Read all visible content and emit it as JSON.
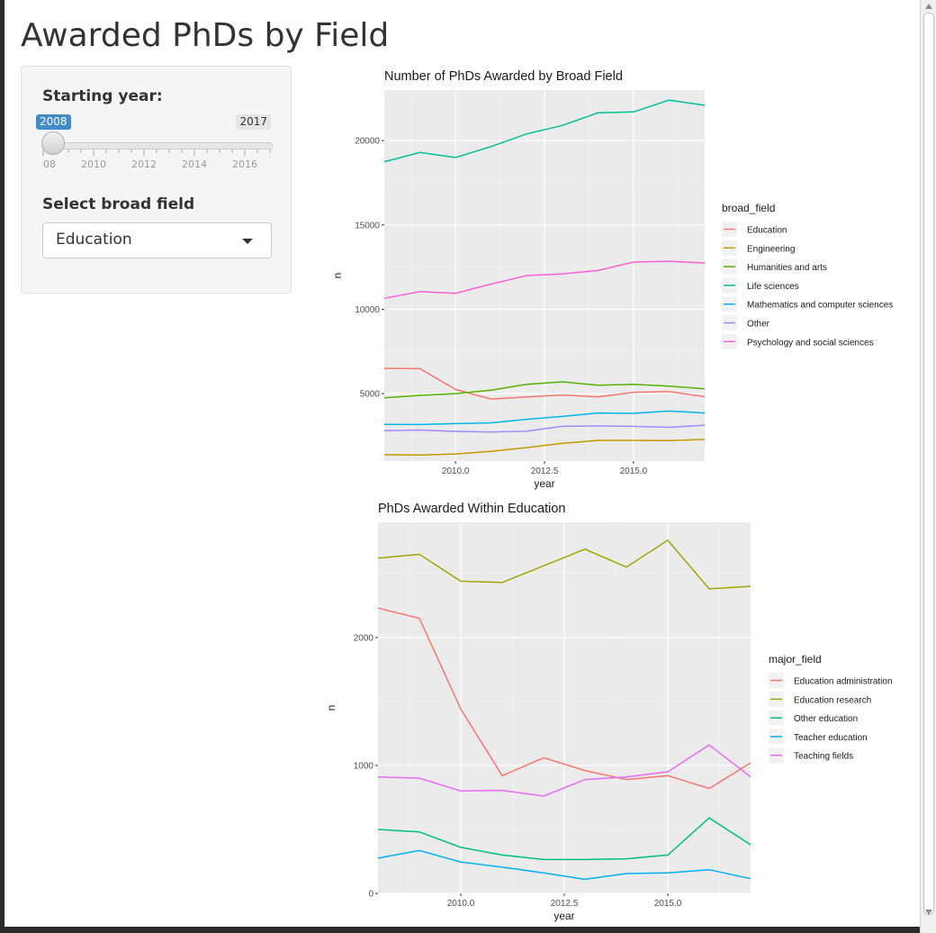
{
  "page": {
    "title": "Awarded PhDs by Field"
  },
  "controls": {
    "slider": {
      "label": "Starting year:",
      "min_label": "2008",
      "max_label": "2017",
      "tick_labels": [
        "2008",
        "2010",
        "2012",
        "2014",
        "2016"
      ]
    },
    "select": {
      "label": "Select broad field",
      "value": "Education"
    }
  },
  "icons": {
    "dropdown": "chevron-down-icon"
  },
  "chart_data": [
    {
      "type": "line",
      "title": "Number of PhDs Awarded by Broad Field",
      "xlabel": "year",
      "ylabel": "n",
      "xlim": [
        2008,
        2017
      ],
      "ylim": [
        1000,
        23000
      ],
      "x_ticks": [
        2010,
        2012.5,
        2015
      ],
      "x_tick_labels": [
        "2010.0",
        "2012.5",
        "2015.0"
      ],
      "y_ticks": [
        5000,
        10000,
        15000,
        20000
      ],
      "y_tick_labels": [
        "5000",
        "10000",
        "15000",
        "20000"
      ],
      "grid": true,
      "legend": "right",
      "legend_title": "broad_field",
      "x": [
        2008,
        2009,
        2010,
        2011,
        2012,
        2013,
        2014,
        2015,
        2016,
        2017
      ],
      "series": [
        {
          "name": "Education",
          "color": "#F8766D",
          "values": [
            6500,
            6480,
            5250,
            4680,
            4800,
            4920,
            4800,
            5080,
            5120,
            4820
          ]
        },
        {
          "name": "Engineering",
          "color": "#C49A00",
          "values": [
            1380,
            1360,
            1420,
            1580,
            1800,
            2050,
            2230,
            2230,
            2220,
            2280
          ]
        },
        {
          "name": "Humanities and arts",
          "color": "#53B400",
          "values": [
            4750,
            4900,
            5000,
            5200,
            5550,
            5700,
            5500,
            5550,
            5450,
            5280
          ]
        },
        {
          "name": "Life sciences",
          "color": "#00C094",
          "values": [
            18750,
            19300,
            19000,
            19650,
            20400,
            20900,
            21650,
            21700,
            22400,
            22100
          ]
        },
        {
          "name": "Mathematics and computer sciences",
          "color": "#00B6EB",
          "values": [
            3180,
            3170,
            3220,
            3270,
            3480,
            3650,
            3850,
            3830,
            3970,
            3850
          ]
        },
        {
          "name": "Other",
          "color": "#A58AFF",
          "values": [
            2800,
            2840,
            2760,
            2720,
            2780,
            3060,
            3080,
            3060,
            3000,
            3130
          ]
        },
        {
          "name": "Psychology and social sciences",
          "color": "#FB61D7",
          "values": [
            10650,
            11050,
            10950,
            11500,
            12000,
            12100,
            12300,
            12800,
            12850,
            12750
          ]
        }
      ]
    },
    {
      "type": "line",
      "title": "PhDs Awarded Within Education",
      "xlabel": "year",
      "ylabel": "n",
      "xlim": [
        2008,
        2017
      ],
      "ylim": [
        0,
        2900
      ],
      "x_ticks": [
        2010,
        2012.5,
        2015
      ],
      "x_tick_labels": [
        "2010.0",
        "2012.5",
        "2015.0"
      ],
      "y_ticks": [
        0,
        1000,
        2000
      ],
      "y_tick_labels": [
        "0",
        "1000",
        "2000"
      ],
      "grid": true,
      "legend": "right",
      "legend_title": "major_field",
      "x": [
        2008,
        2009,
        2010,
        2011,
        2012,
        2013,
        2014,
        2015,
        2016,
        2017
      ],
      "series": [
        {
          "name": "Education administration",
          "color": "#F8766D",
          "values": [
            2230,
            2150,
            1440,
            920,
            1060,
            960,
            890,
            920,
            820,
            1020
          ]
        },
        {
          "name": "Education research",
          "color": "#A3A500",
          "values": [
            2620,
            2650,
            2440,
            2430,
            2560,
            2690,
            2550,
            2760,
            2380,
            2400
          ]
        },
        {
          "name": "Other education",
          "color": "#00BF7D",
          "values": [
            500,
            480,
            360,
            300,
            265,
            265,
            270,
            300,
            590,
            380
          ]
        },
        {
          "name": "Teacher education",
          "color": "#00B0F6",
          "values": [
            275,
            335,
            245,
            205,
            160,
            110,
            155,
            160,
            185,
            115
          ]
        },
        {
          "name": "Teaching fields",
          "color": "#E76BF3",
          "values": [
            910,
            900,
            800,
            805,
            760,
            890,
            910,
            950,
            1160,
            910
          ]
        }
      ]
    }
  ]
}
